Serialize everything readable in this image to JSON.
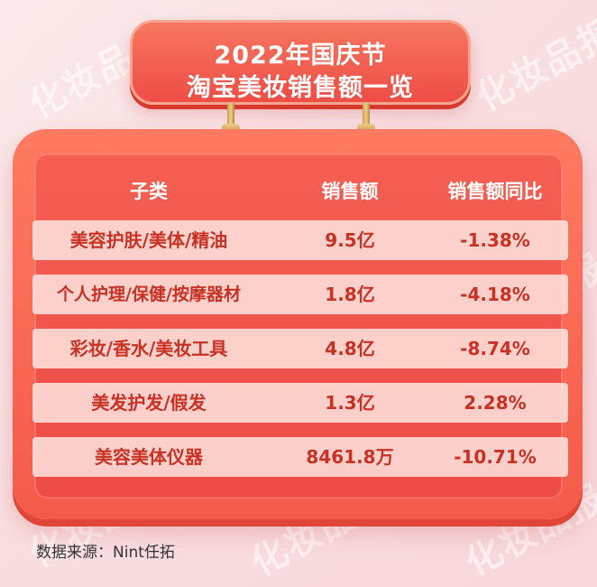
{
  "title_line1": "2022年国庆节",
  "title_line2": "淘宝美妆销售额一览",
  "watermark": "化妆品报",
  "chart_data": {
    "type": "table",
    "columns": [
      "子类",
      "销售额",
      "销售额同比"
    ],
    "rows": [
      [
        "美容护肤/美体/精油",
        "9.5亿",
        "-1.38%"
      ],
      [
        "个人护理/保健/按摩器材",
        "1.8亿",
        "-4.18%"
      ],
      [
        "彩妆/香水/美妆工具",
        "4.8亿",
        "-8.74%"
      ],
      [
        "美发护发/假发",
        "1.3亿",
        "2.28%"
      ],
      [
        "美容美体仪器",
        "8461.8万",
        "-10.71%"
      ]
    ]
  },
  "source": "数据来源：Nint任拓",
  "colors": {
    "board": "#f45a4a",
    "row_background": "#ffebe6",
    "row_text": "#c73225",
    "header_text": "#ffffff"
  }
}
